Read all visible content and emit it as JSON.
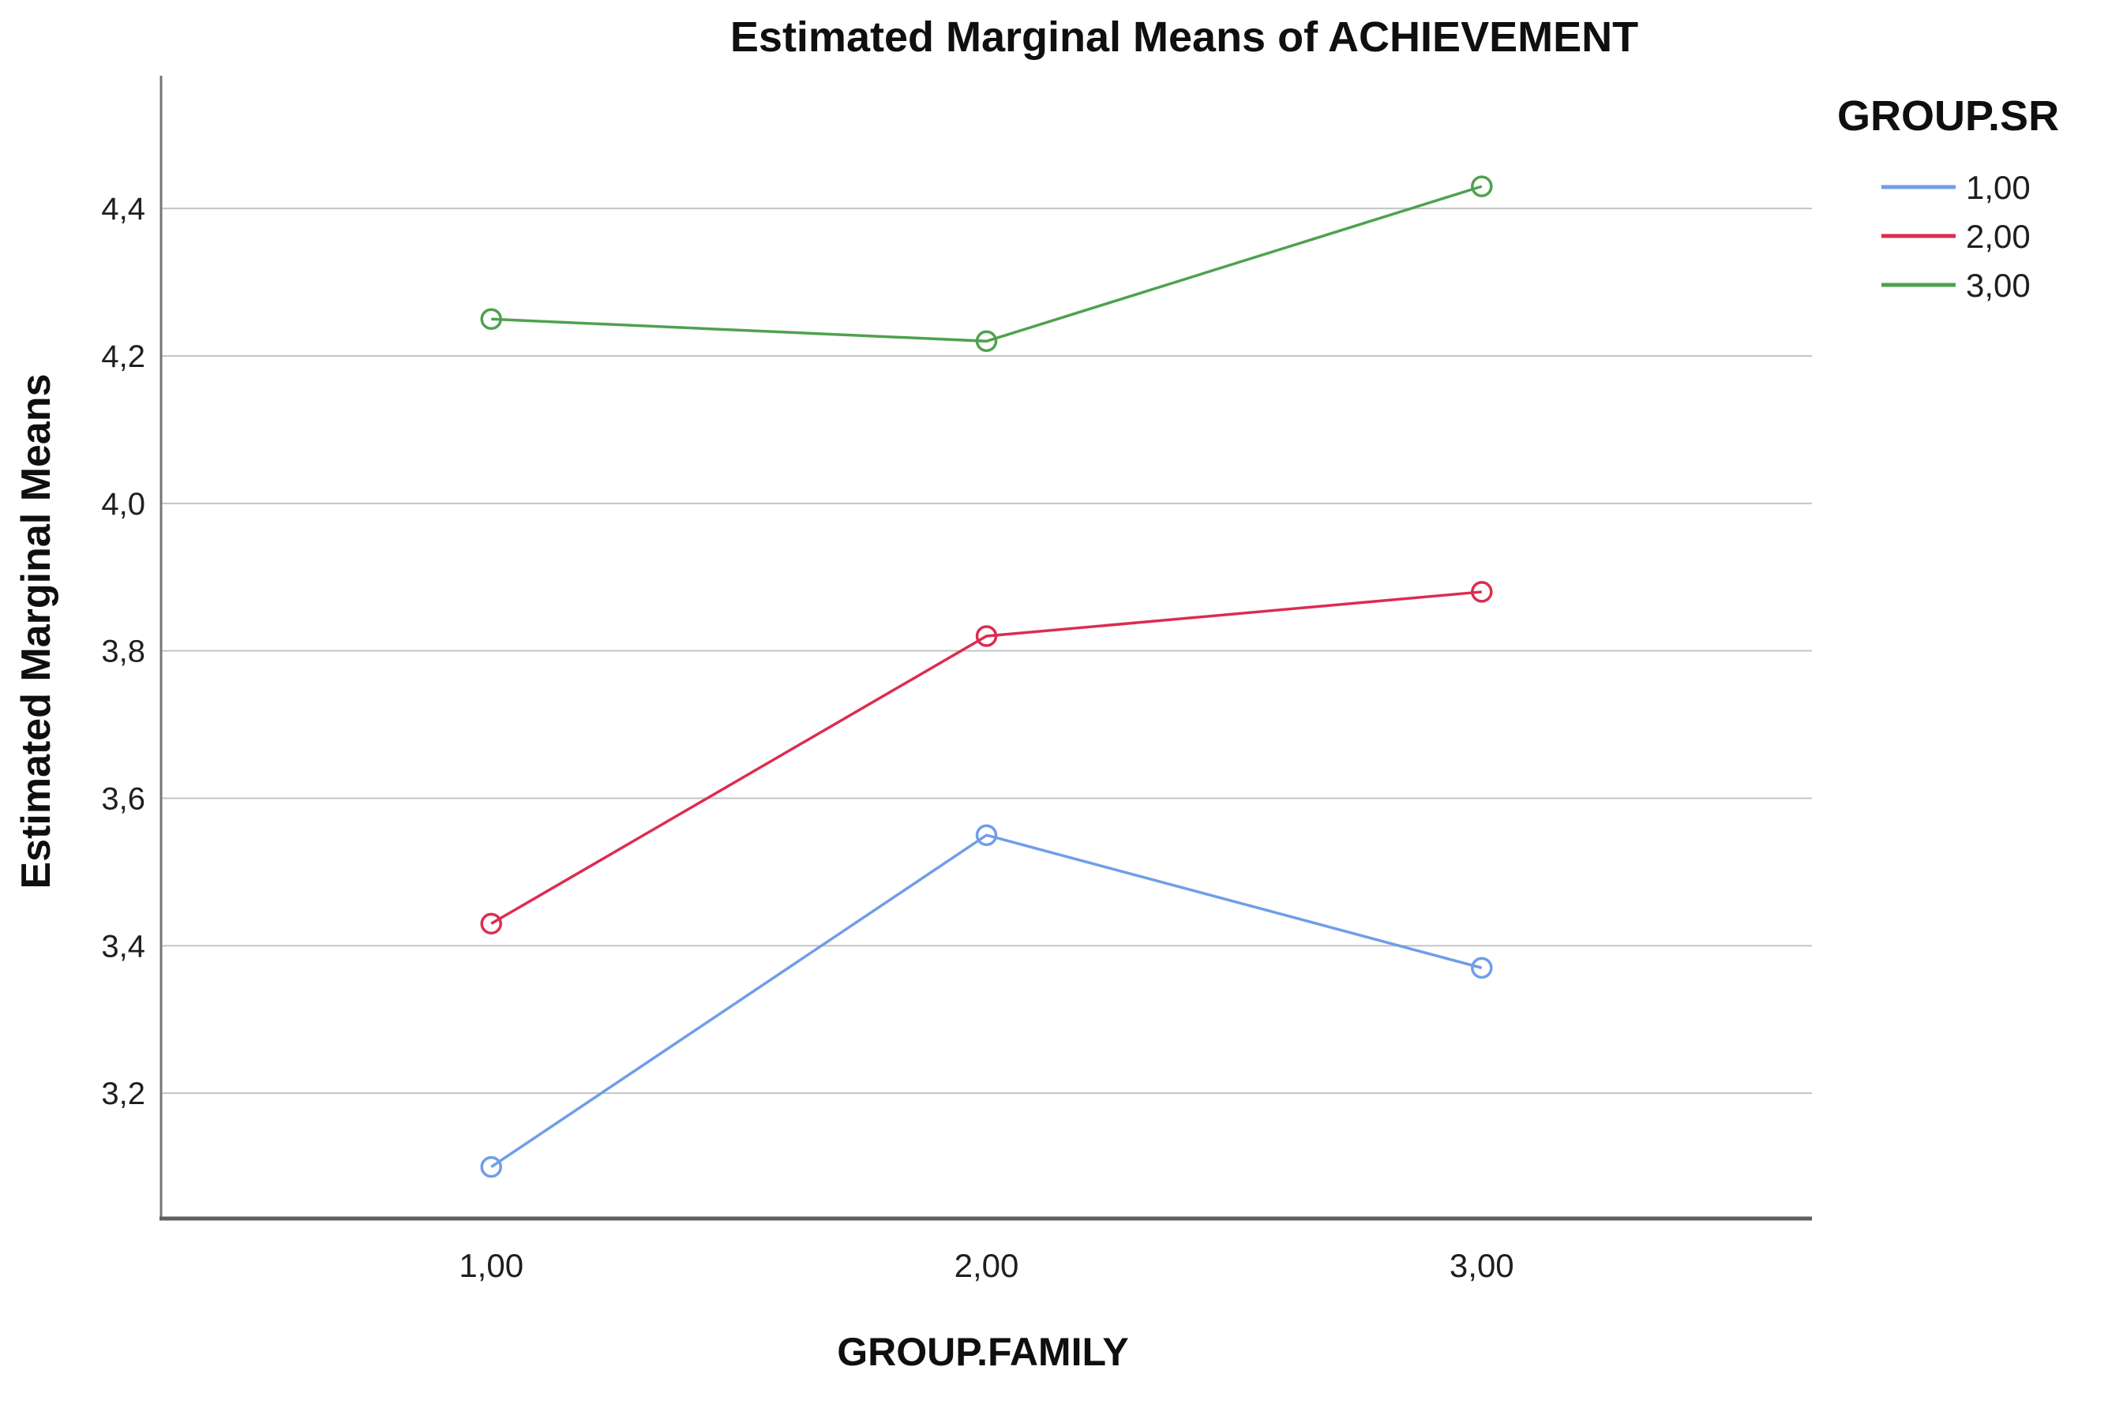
{
  "chart_data": {
    "type": "line",
    "title": "Estimated Marginal Means of ACHIEVEMENT",
    "xlabel": "GROUP.FAMILY",
    "ylabel": "Estimated Marginal Means",
    "categories": [
      "1,00",
      "2,00",
      "3,00"
    ],
    "x_values": [
      1.0,
      2.0,
      3.0
    ],
    "series": [
      {
        "name": "1,00",
        "color": "#6F9EE8",
        "values": [
          3.1,
          3.55,
          3.37
        ]
      },
      {
        "name": "2,00",
        "color": "#DD2C51",
        "values": [
          3.43,
          3.82,
          3.88
        ]
      },
      {
        "name": "3,00",
        "color": "#4FA14F",
        "values": [
          4.25,
          4.22,
          4.43
        ]
      }
    ],
    "y_ticks": [
      {
        "label": "3,2",
        "value": 3.2
      },
      {
        "label": "3,4",
        "value": 3.4
      },
      {
        "label": "3,6",
        "value": 3.6
      },
      {
        "label": "3,8",
        "value": 3.8
      },
      {
        "label": "4,0",
        "value": 4.0
      },
      {
        "label": "4,2",
        "value": 4.2
      },
      {
        "label": "4,4",
        "value": 4.4
      }
    ],
    "ylim": [
      3.03,
      4.58
    ],
    "grid": "horizontal-only",
    "legend": {
      "title": "GROUP.SR",
      "position": "top-right"
    },
    "colors": {
      "grid": "#c4c4c4",
      "spine_left": "#757575",
      "spine_bottom": "#5f5f5f",
      "tick_text": "#1f1f1f"
    },
    "marker": "open-circle",
    "decimal_separator": ","
  }
}
